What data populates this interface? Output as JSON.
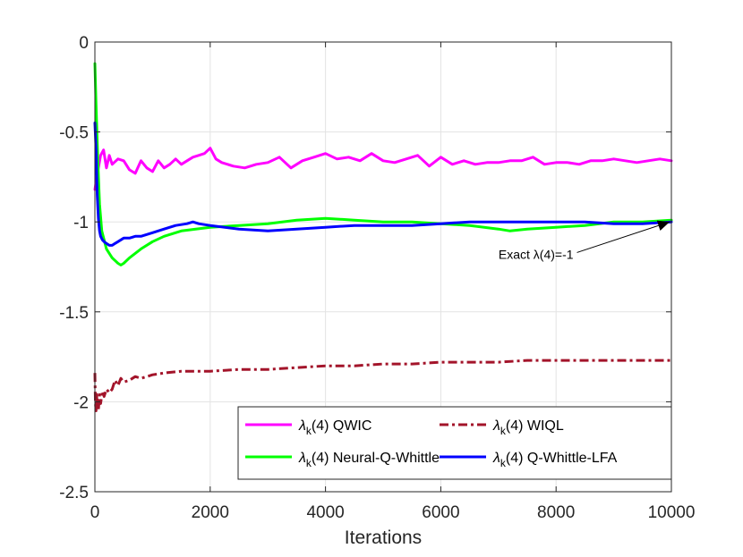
{
  "chart_data": {
    "type": "line",
    "title": "",
    "xlabel": "Iterations",
    "ylabel": "",
    "xlim": [
      0,
      10000
    ],
    "ylim": [
      -2.5,
      0
    ],
    "xticks": [
      0,
      2000,
      4000,
      6000,
      8000,
      10000
    ],
    "xtick_labels": [
      "0",
      "2000",
      "4000",
      "6000",
      "8000",
      "10000"
    ],
    "yticks": [
      0,
      -0.5,
      -1,
      -1.5,
      -2,
      -2.5
    ],
    "ytick_labels": [
      "0",
      "-0.5",
      "-1",
      "-1.5",
      "-2",
      "-2.5"
    ],
    "grid": true,
    "legend_location": "bottom-right",
    "annotation": {
      "text": "Exact λ(4)=-1",
      "target": {
        "x": 10000,
        "y": -1.0
      },
      "text_anchor": {
        "x": 8300,
        "y": -1.18
      }
    },
    "series": [
      {
        "name": "QWIC",
        "legend_label": "(4) QWIC",
        "color": "#ff00ff",
        "style": "solid",
        "x": [
          0,
          50,
          100,
          150,
          200,
          250,
          300,
          400,
          500,
          600,
          700,
          800,
          900,
          1000,
          1100,
          1200,
          1300,
          1400,
          1500,
          1600,
          1700,
          1800,
          1900,
          2000,
          2100,
          2200,
          2400,
          2600,
          2800,
          3000,
          3200,
          3400,
          3600,
          3800,
          4000,
          4200,
          4400,
          4600,
          4800,
          5000,
          5200,
          5400,
          5600,
          5800,
          6000,
          6200,
          6400,
          6600,
          6800,
          7000,
          7200,
          7400,
          7600,
          7800,
          8000,
          8200,
          8400,
          8600,
          8800,
          9000,
          9200,
          9400,
          9600,
          9800,
          10000
        ],
        "y": [
          -0.82,
          -0.72,
          -0.63,
          -0.6,
          -0.7,
          -0.63,
          -0.68,
          -0.65,
          -0.66,
          -0.71,
          -0.73,
          -0.66,
          -0.7,
          -0.72,
          -0.66,
          -0.7,
          -0.68,
          -0.65,
          -0.68,
          -0.66,
          -0.64,
          -0.63,
          -0.62,
          -0.59,
          -0.65,
          -0.67,
          -0.69,
          -0.7,
          -0.68,
          -0.67,
          -0.64,
          -0.7,
          -0.66,
          -0.64,
          -0.62,
          -0.65,
          -0.64,
          -0.66,
          -0.62,
          -0.66,
          -0.67,
          -0.65,
          -0.63,
          -0.69,
          -0.64,
          -0.68,
          -0.66,
          -0.68,
          -0.67,
          -0.67,
          -0.66,
          -0.66,
          -0.64,
          -0.68,
          -0.67,
          -0.67,
          -0.68,
          -0.66,
          -0.66,
          -0.65,
          -0.66,
          -0.67,
          -0.66,
          -0.65,
          -0.66
        ]
      },
      {
        "name": "Neural-Q-Whittle",
        "legend_label": "(4) Neural-Q-Whittle",
        "color": "#00ff00",
        "style": "solid",
        "x": [
          0,
          20,
          50,
          80,
          120,
          200,
          300,
          400,
          450,
          500,
          600,
          800,
          1000,
          1200,
          1500,
          2000,
          2500,
          3000,
          3500,
          4000,
          4500,
          5000,
          5500,
          6000,
          6500,
          7000,
          7200,
          7500,
          8000,
          8500,
          9000,
          9500,
          10000
        ],
        "y": [
          -0.12,
          -0.35,
          -0.65,
          -0.9,
          -1.05,
          -1.15,
          -1.2,
          -1.23,
          -1.24,
          -1.23,
          -1.2,
          -1.15,
          -1.11,
          -1.08,
          -1.05,
          -1.03,
          -1.02,
          -1.01,
          -0.99,
          -0.98,
          -0.99,
          -1.0,
          -1.0,
          -1.01,
          -1.02,
          -1.04,
          -1.05,
          -1.04,
          -1.03,
          -1.02,
          -1.0,
          -1.0,
          -0.99
        ]
      },
      {
        "name": "WIQL",
        "legend_label": "(4) WIQL",
        "color": "#a3142a",
        "style": "dashdot",
        "x": [
          0,
          10,
          20,
          30,
          40,
          50,
          60,
          80,
          100,
          130,
          160,
          200,
          250,
          300,
          350,
          400,
          450,
          500,
          600,
          700,
          800,
          1000,
          1200,
          1500,
          2000,
          2500,
          3000,
          3500,
          4000,
          4500,
          5000,
          5500,
          6000,
          6500,
          7000,
          7500,
          8000,
          8500,
          9000,
          9500,
          10000
        ],
        "y": [
          -1.84,
          -2.01,
          -2.05,
          -1.95,
          -2.04,
          -1.99,
          -2.05,
          -1.96,
          -2.01,
          -1.94,
          -1.97,
          -1.93,
          -1.95,
          -1.93,
          -1.88,
          -1.91,
          -1.87,
          -1.89,
          -1.88,
          -1.86,
          -1.87,
          -1.85,
          -1.84,
          -1.83,
          -1.83,
          -1.82,
          -1.82,
          -1.81,
          -1.8,
          -1.8,
          -1.79,
          -1.79,
          -1.78,
          -1.78,
          -1.78,
          -1.77,
          -1.77,
          -1.77,
          -1.77,
          -1.77,
          -1.77
        ]
      },
      {
        "name": "Q-Whittle-LFA",
        "legend_label": "(4) Q-Whittle-LFA",
        "color": "#0000ff",
        "style": "solid",
        "x": [
          0,
          20,
          40,
          60,
          80,
          100,
          130,
          160,
          200,
          250,
          300,
          350,
          400,
          450,
          500,
          600,
          700,
          800,
          1000,
          1200,
          1400,
          1600,
          1700,
          1800,
          2000,
          2500,
          3000,
          3500,
          4000,
          4500,
          5000,
          5500,
          6000,
          6500,
          7000,
          7500,
          8000,
          8500,
          9000,
          9500,
          10000
        ],
        "y": [
          -0.45,
          -0.6,
          -0.85,
          -0.98,
          -1.05,
          -1.08,
          -1.1,
          -1.11,
          -1.12,
          -1.13,
          -1.13,
          -1.12,
          -1.11,
          -1.1,
          -1.09,
          -1.09,
          -1.08,
          -1.08,
          -1.06,
          -1.04,
          -1.02,
          -1.01,
          -1.0,
          -1.01,
          -1.02,
          -1.04,
          -1.05,
          -1.04,
          -1.03,
          -1.02,
          -1.02,
          -1.02,
          -1.01,
          -1.0,
          -1.0,
          -1.0,
          -1.0,
          -1.0,
          -1.01,
          -1.01,
          -1.0
        ]
      }
    ]
  }
}
